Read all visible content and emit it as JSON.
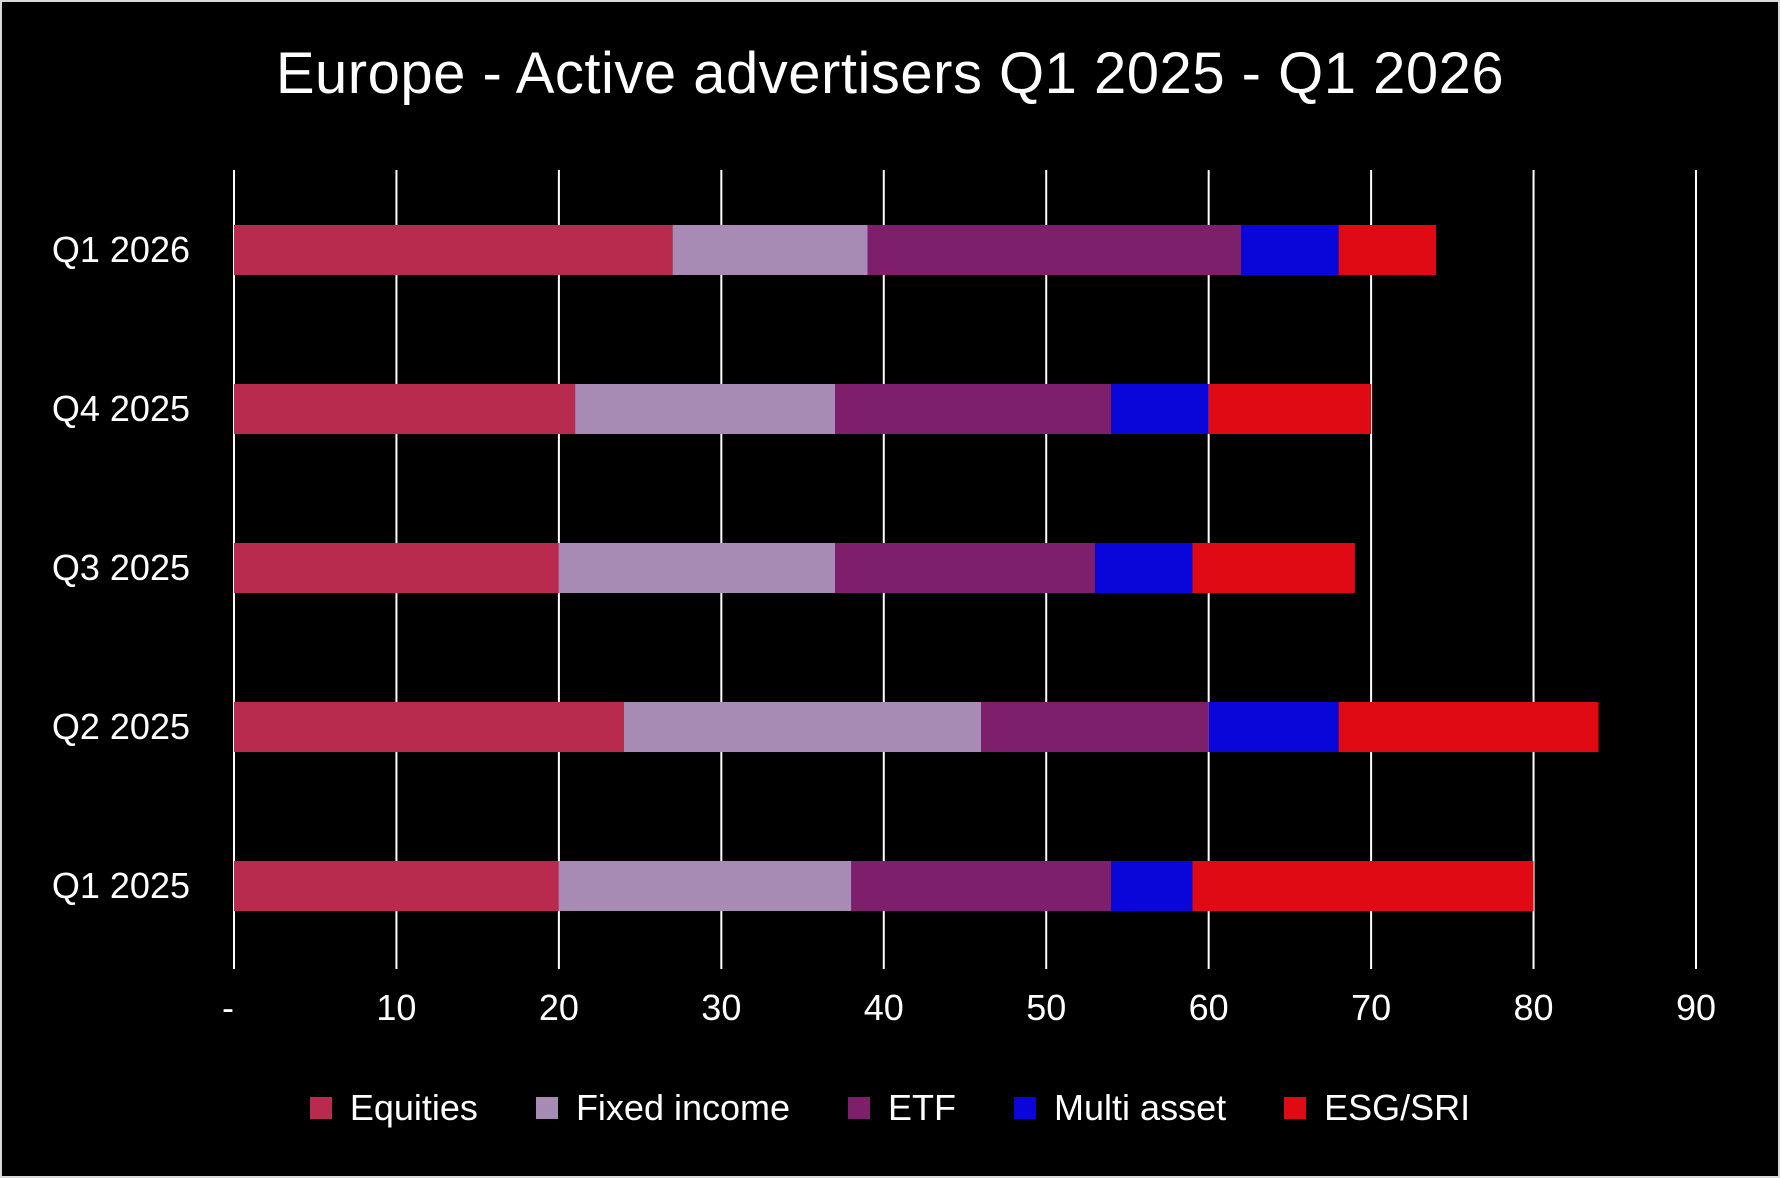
{
  "chart_data": {
    "type": "bar",
    "orientation": "horizontal",
    "stacked": true,
    "title": "Europe - Active advertisers Q1 2025 - Q1 2026",
    "categories": [
      "Q1 2026",
      "Q4 2025",
      "Q3 2025",
      "Q2 2025",
      "Q1 2025"
    ],
    "series": [
      {
        "name": "Equities",
        "color": "#B92B4E",
        "values": [
          27,
          21,
          20,
          24,
          20
        ]
      },
      {
        "name": "Fixed income",
        "color": "#A78BB4",
        "values": [
          12,
          16,
          17,
          22,
          18
        ]
      },
      {
        "name": "ETF",
        "color": "#7E1F6C",
        "values": [
          23,
          17,
          16,
          14,
          16
        ]
      },
      {
        "name": "Multi asset",
        "color": "#0A06DA",
        "values": [
          6,
          6,
          6,
          8,
          5
        ]
      },
      {
        "name": "ESG/SRI",
        "color": "#E00A14",
        "values": [
          6,
          10,
          10,
          16,
          21
        ]
      }
    ],
    "xlim": [
      0,
      90
    ],
    "x_ticks": [
      0,
      10,
      20,
      30,
      40,
      50,
      60,
      70,
      80,
      90
    ],
    "x_tick_labels": [
      "-",
      "10",
      "20",
      "30",
      "40",
      "50",
      "60",
      "70",
      "80",
      "90"
    ],
    "grid": true,
    "legend_position": "bottom",
    "background": "#000000",
    "text_color": "#FFFFFF",
    "grid_color": "#FFFFFF"
  }
}
